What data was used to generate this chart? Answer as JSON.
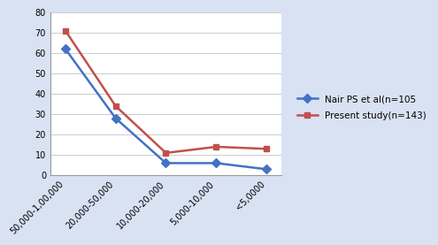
{
  "categories": [
    "50,000-1,00,000",
    "20,000-50,000",
    "10,000-20,000",
    "5,000-10,000",
    "<5,0000"
  ],
  "nair_values": [
    62,
    28,
    6,
    6,
    3
  ],
  "present_values": [
    71,
    34,
    11,
    14,
    13
  ],
  "nair_label": "Nair PS et al(n=105",
  "present_label": "Present study(n=143)",
  "nair_color": "#4472C4",
  "present_color": "#C0504D",
  "ylim": [
    0,
    80
  ],
  "yticks": [
    0,
    10,
    20,
    30,
    40,
    50,
    60,
    70,
    80
  ],
  "background_color": "#D9E2F3",
  "plot_bg_color": "#FFFFFF",
  "grid_color": "#CCCCCC",
  "marker_nair": "D",
  "marker_present": "s",
  "markersize": 5,
  "linewidth": 1.8,
  "tick_fontsize": 7,
  "legend_fontsize": 7.5
}
